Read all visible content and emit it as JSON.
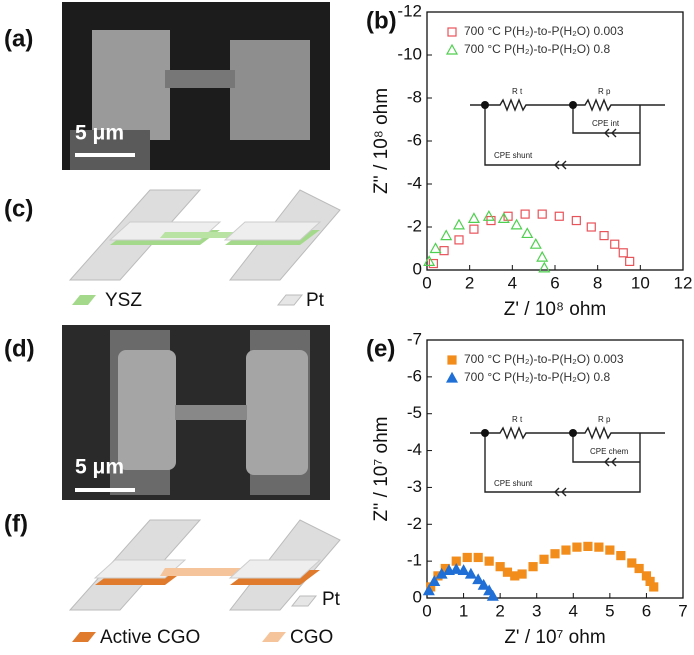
{
  "labels": {
    "a": "(a)",
    "b": "(b)",
    "c": "(c)",
    "d": "(d)",
    "e": "(e)",
    "f": "(f)"
  },
  "scale_bars": [
    "5 μm",
    "5 μm"
  ],
  "schematic_c": {
    "legend": [
      "YSZ",
      "Pt"
    ]
  },
  "schematic_f": {
    "legend": [
      "Pt",
      "Active CGO",
      "CGO"
    ]
  },
  "circuit_b": [
    "R t",
    "R p",
    "CPE int",
    "CPE shunt"
  ],
  "circuit_e": [
    "R t",
    "R p",
    "CPE chem",
    "CPE shunt"
  ],
  "chart_data": [
    {
      "type": "scatter",
      "xlabel": "Z' / 10⁸ ohm",
      "ylabel": "Z'' / 10⁸ ohm",
      "xlim": [
        0,
        12
      ],
      "ylim": [
        0,
        -12
      ],
      "xticks": [
        0,
        2,
        4,
        6,
        8,
        10,
        12
      ],
      "yticks": [
        0,
        -2,
        -4,
        -6,
        -8,
        -10,
        -12
      ],
      "grid": false,
      "legend": "upper left",
      "series": [
        {
          "name": "700 °C P(H₂)-to-P(H₂O) 0.003",
          "color": "#e8535a",
          "marker": "square",
          "filled": false,
          "x": [
            0.3,
            0.8,
            1.5,
            2.2,
            3.0,
            3.8,
            4.6,
            5.4,
            6.2,
            7.0,
            7.7,
            8.3,
            8.8,
            9.2,
            9.5
          ],
          "values": [
            -0.3,
            -0.9,
            -1.4,
            -1.9,
            -2.3,
            -2.5,
            -2.6,
            -2.6,
            -2.5,
            -2.3,
            -2.0,
            -1.6,
            -1.2,
            -0.8,
            -0.4
          ]
        },
        {
          "name": "700 °C P(H₂)-to-P(H₂O) 0.8",
          "color": "#4fcf4f",
          "marker": "triangle",
          "filled": false,
          "x": [
            0.1,
            0.4,
            0.9,
            1.5,
            2.2,
            2.9,
            3.6,
            4.2,
            4.7,
            5.1,
            5.4,
            5.5
          ],
          "values": [
            -0.4,
            -1.0,
            -1.6,
            -2.1,
            -2.4,
            -2.5,
            -2.4,
            -2.1,
            -1.7,
            -1.2,
            -0.6,
            -0.1
          ]
        }
      ]
    },
    {
      "type": "scatter",
      "xlabel": "Z' / 10⁷ ohm",
      "ylabel": "Z'' / 10⁷ ohm",
      "xlim": [
        0,
        7
      ],
      "ylim": [
        0,
        -7
      ],
      "xticks": [
        0,
        1,
        2,
        3,
        4,
        5,
        6,
        7
      ],
      "yticks": [
        0,
        -1,
        -2,
        -3,
        -4,
        -5,
        -6,
        -7
      ],
      "grid": false,
      "legend": "upper left",
      "series": [
        {
          "name": "700 °C P(H₂)-to-P(H₂O) 0.003",
          "color": "#f28c1b",
          "marker": "square",
          "filled": true,
          "x": [
            0.1,
            0.3,
            0.5,
            0.8,
            1.1,
            1.4,
            1.7,
            2.0,
            2.2,
            2.4,
            2.6,
            2.9,
            3.2,
            3.5,
            3.8,
            4.1,
            4.4,
            4.7,
            5.0,
            5.3,
            5.6,
            5.8,
            6.0,
            6.1,
            6.2
          ],
          "values": [
            -0.3,
            -0.6,
            -0.8,
            -1.0,
            -1.1,
            -1.1,
            -1.0,
            -0.85,
            -0.7,
            -0.6,
            -0.65,
            -0.85,
            -1.05,
            -1.2,
            -1.3,
            -1.38,
            -1.4,
            -1.38,
            -1.3,
            -1.15,
            -0.95,
            -0.8,
            -0.6,
            -0.45,
            -0.3
          ]
        },
        {
          "name": "700 °C P(H₂)-to-P(H₂O) 0.8",
          "color": "#1f6fd6",
          "marker": "triangle",
          "filled": true,
          "x": [
            0.05,
            0.2,
            0.4,
            0.6,
            0.8,
            1.0,
            1.2,
            1.4,
            1.55,
            1.7,
            1.8
          ],
          "values": [
            -0.2,
            -0.45,
            -0.65,
            -0.75,
            -0.78,
            -0.75,
            -0.65,
            -0.5,
            -0.35,
            -0.2,
            -0.05
          ]
        }
      ]
    }
  ]
}
